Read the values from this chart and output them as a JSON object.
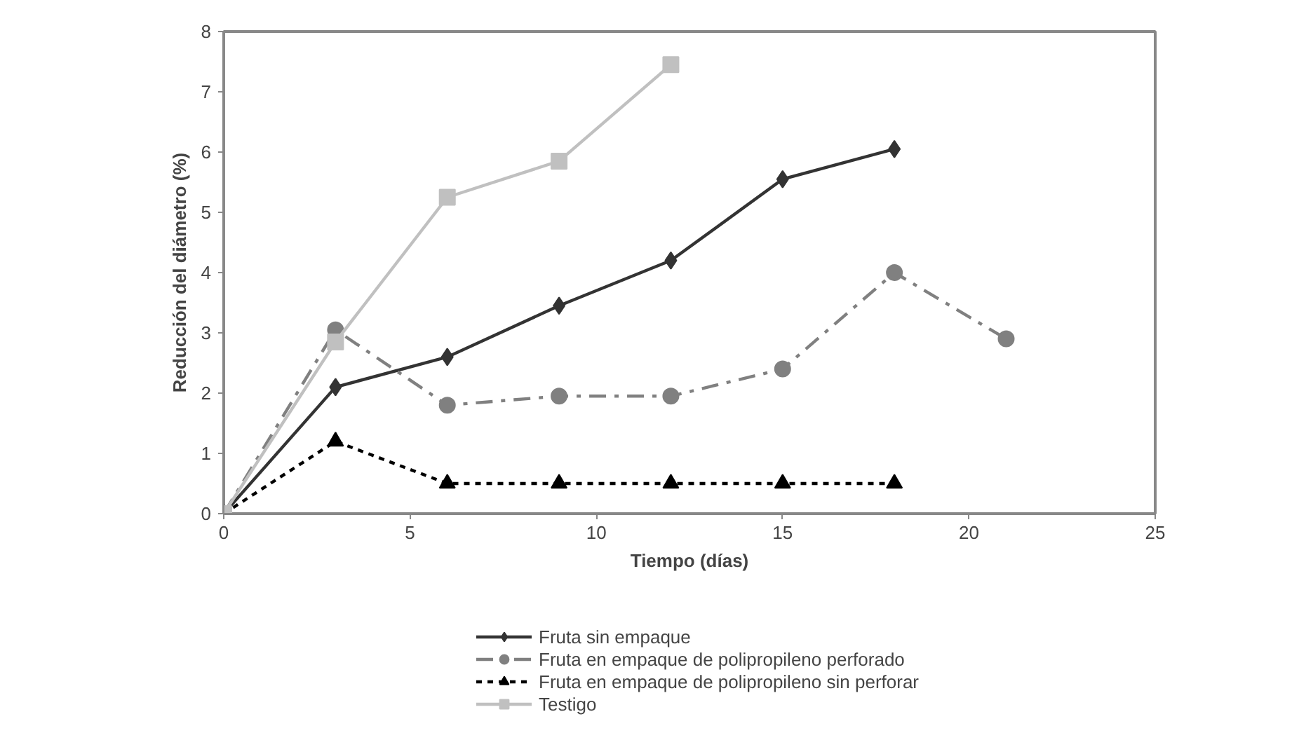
{
  "chart_data": {
    "type": "line",
    "xlabel": "Tiempo (días)",
    "ylabel": "Reducción del diámetro (%)",
    "xlim": [
      0,
      25
    ],
    "xticks": [
      0,
      5,
      10,
      15,
      20,
      25
    ],
    "ylim": [
      0,
      8
    ],
    "yticks": [
      0,
      1,
      2,
      3,
      4,
      5,
      6,
      7,
      8
    ],
    "grid": false,
    "legend": "bottom",
    "series": [
      {
        "name": "Fruta sin empaque",
        "color": "#333333",
        "marker": "diamond",
        "line_style": "solid",
        "x": [
          0,
          3,
          6,
          9,
          12,
          15,
          18
        ],
        "values": [
          0,
          2.1,
          2.6,
          3.45,
          4.2,
          5.55,
          6.05
        ]
      },
      {
        "name": "Fruta en empaque de polipropileno perforado",
        "color": "#808080",
        "marker": "circle",
        "line_style": "dashdot",
        "x": [
          0,
          3,
          6,
          9,
          12,
          15,
          18,
          21
        ],
        "values": [
          0,
          3.05,
          1.8,
          1.95,
          1.95,
          2.4,
          4.0,
          2.9
        ]
      },
      {
        "name": "Fruta en empaque de polipropileno sin perforar",
        "color": "#000000",
        "marker": "triangle",
        "line_style": "dashed",
        "x": [
          0,
          3,
          6,
          9,
          12,
          15,
          18
        ],
        "values": [
          0,
          1.2,
          0.5,
          0.5,
          0.5,
          0.5,
          0.5
        ]
      },
      {
        "name": "Testigo",
        "color": "#c0c0c0",
        "marker": "square",
        "line_style": "solid",
        "x": [
          0,
          3,
          6,
          9,
          12
        ],
        "values": [
          0,
          2.85,
          5.25,
          5.85,
          7.45
        ]
      }
    ]
  }
}
